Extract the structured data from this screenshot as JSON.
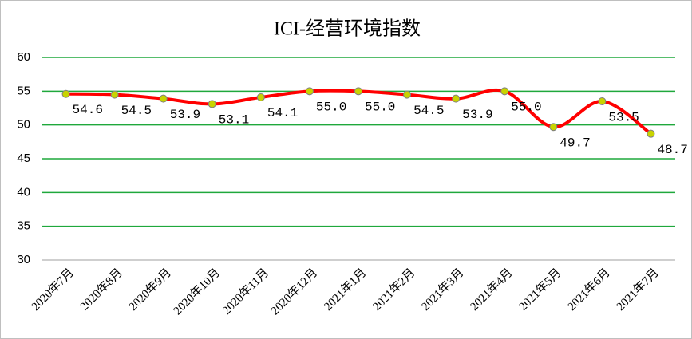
{
  "chart_data": {
    "type": "line",
    "title": "ICI-经营环境指数",
    "categories": [
      "2020年7月",
      "2020年8月",
      "2020年9月",
      "2020年10月",
      "2020年11月",
      "2020年12月",
      "2021年1月",
      "2021年2月",
      "2021年3月",
      "2021年4月",
      "2021年5月",
      "2021年6月",
      "2021年7月"
    ],
    "values": [
      54.6,
      54.5,
      53.9,
      53.1,
      54.1,
      55.0,
      55.0,
      54.5,
      53.9,
      55.0,
      49.7,
      53.5,
      48.7
    ],
    "value_labels": [
      "54.6",
      "54.5",
      "53.9",
      "53.1",
      "54.1",
      "55.0",
      "55.0",
      "54.5",
      "53.9",
      "55.0",
      "49.7",
      "53.5",
      "48.7"
    ],
    "color": "#ff0000",
    "marker_color": "#c8d400",
    "ylim": [
      30,
      60
    ],
    "yticks": [
      30,
      35,
      40,
      45,
      50,
      55,
      60
    ],
    "grid": true,
    "grid_color": "#1fa83c",
    "smooth": true
  }
}
